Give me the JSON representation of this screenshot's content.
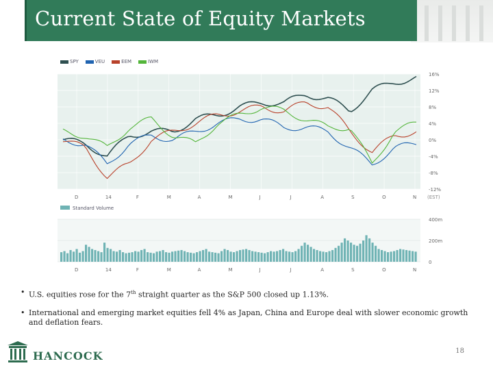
{
  "slide": {
    "title": "Current State of Equity Markets",
    "page_number": "18",
    "logo_text": "HANCOCK"
  },
  "bullets": [
    {
      "text_before": "U.S. equities rose for the 7",
      "sup": "th",
      "text_after": " straight quarter as the S&P 500 closed up 1.13%."
    },
    {
      "text_before": "International and emerging market equities fell 4% as Japan, China and Europe deal with slower economic growth and deflation fears.",
      "sup": "",
      "text_after": ""
    }
  ],
  "chart_data": [
    {
      "type": "line",
      "legend": [
        "SPY",
        "VEU",
        "EEM",
        "IWM"
      ],
      "legend_placement": "top-left",
      "x_ticks": [
        "D",
        "14",
        "F",
        "M",
        "A",
        "M",
        "J",
        "J",
        "A",
        "S",
        "O",
        "N"
      ],
      "x_suffix": "(EST)",
      "y_ticks": [
        "16%",
        "12%",
        "8%",
        "4%",
        "0%",
        "-4%",
        "-8%",
        "-12%"
      ],
      "ylim": [
        -12,
        16
      ],
      "grid": true,
      "series": [
        {
          "name": "SPY",
          "color": "#2e4f50",
          "values": [
            0,
            -1,
            -4,
            1,
            2,
            2,
            5,
            6,
            8,
            9,
            9,
            11,
            10,
            7,
            12,
            14,
            15
          ]
        },
        {
          "name": "VEU",
          "color": "#1f63b0",
          "values": [
            0,
            -1,
            -6,
            -1,
            1,
            0,
            2,
            4,
            5,
            5,
            3,
            3,
            2,
            -2,
            -6,
            -2,
            -1
          ]
        },
        {
          "name": "EEM",
          "color": "#b8412a",
          "values": [
            0,
            -2,
            -9,
            -6,
            0,
            2,
            4,
            6,
            7,
            8,
            7,
            9,
            8,
            2,
            -3,
            1,
            2
          ]
        },
        {
          "name": "IWM",
          "color": "#53b53a",
          "values": [
            2,
            1,
            -2,
            3,
            5,
            1,
            -1,
            4,
            6,
            8,
            7,
            5,
            3,
            3,
            -6,
            2,
            4
          ]
        }
      ]
    },
    {
      "type": "bar",
      "legend": [
        "Standard Volume"
      ],
      "y_ticks": [
        "400m",
        "200m",
        "0"
      ],
      "ylim": [
        0,
        400
      ],
      "x_ticks": [
        "D",
        "14",
        "F",
        "M",
        "A",
        "M",
        "J",
        "J",
        "A",
        "S",
        "O",
        "N"
      ],
      "values": [
        90,
        100,
        80,
        110,
        95,
        120,
        85,
        100,
        160,
        140,
        120,
        110,
        100,
        90,
        180,
        130,
        120,
        100,
        95,
        110,
        90,
        80,
        85,
        90,
        100,
        95,
        110,
        120,
        90,
        85,
        80,
        95,
        100,
        110,
        90,
        85,
        95,
        100,
        105,
        110,
        100,
        90,
        85,
        80,
        90,
        100,
        110,
        120,
        95,
        90,
        85,
        80,
        100,
        120,
        110,
        95,
        90,
        100,
        110,
        115,
        120,
        110,
        100,
        95,
        90,
        85,
        80,
        90,
        100,
        95,
        100,
        110,
        120,
        100,
        95,
        90,
        100,
        120,
        150,
        180,
        160,
        140,
        120,
        110,
        100,
        95,
        90,
        100,
        110,
        130,
        150,
        180,
        220,
        200,
        180,
        160,
        150,
        170,
        200,
        250,
        220,
        180,
        150,
        120,
        110,
        100,
        90,
        95,
        100,
        110,
        120,
        115,
        110,
        105,
        100,
        95
      ]
    }
  ]
}
